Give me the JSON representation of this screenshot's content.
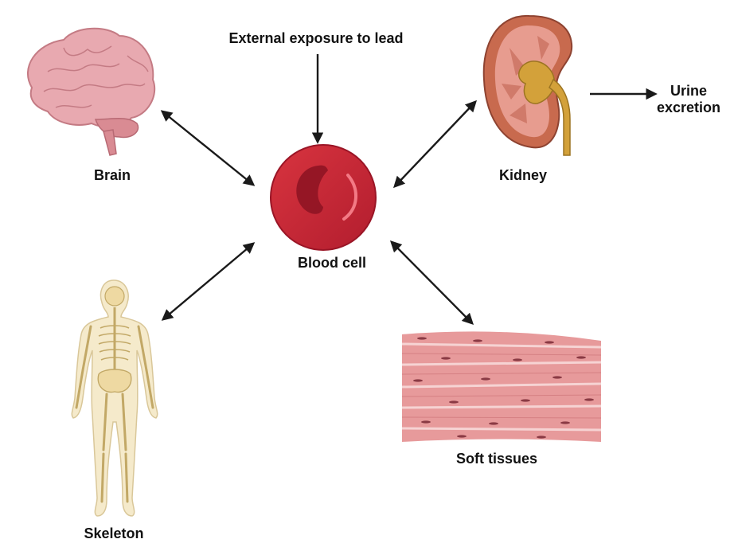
{
  "labels": {
    "external": "External exposure to lead",
    "blood_cell": "Blood cell",
    "brain": "Brain",
    "kidney": "Kidney",
    "urine": "Urine excretion",
    "skeleton": "Skeleton",
    "soft_tissues": "Soft tissues"
  },
  "colors": {
    "arrow": "#1a1a1a",
    "blood_cell": "#c92a3a",
    "blood_cell_dark": "#9a1526",
    "brain": "#e8a9b0",
    "kidney_outer": "#c86a4e",
    "kidney_inner": "#e79c8f",
    "ureter": "#d3a13a",
    "bone": "#eed9a2",
    "body_outline": "#f5e9c9",
    "muscle": "#e79a9b",
    "muscle_dark": "#c86b70"
  },
  "icons": [
    "brain-icon",
    "blood-cell-icon",
    "kidney-icon",
    "skeleton-icon",
    "muscle-tissue-icon"
  ]
}
